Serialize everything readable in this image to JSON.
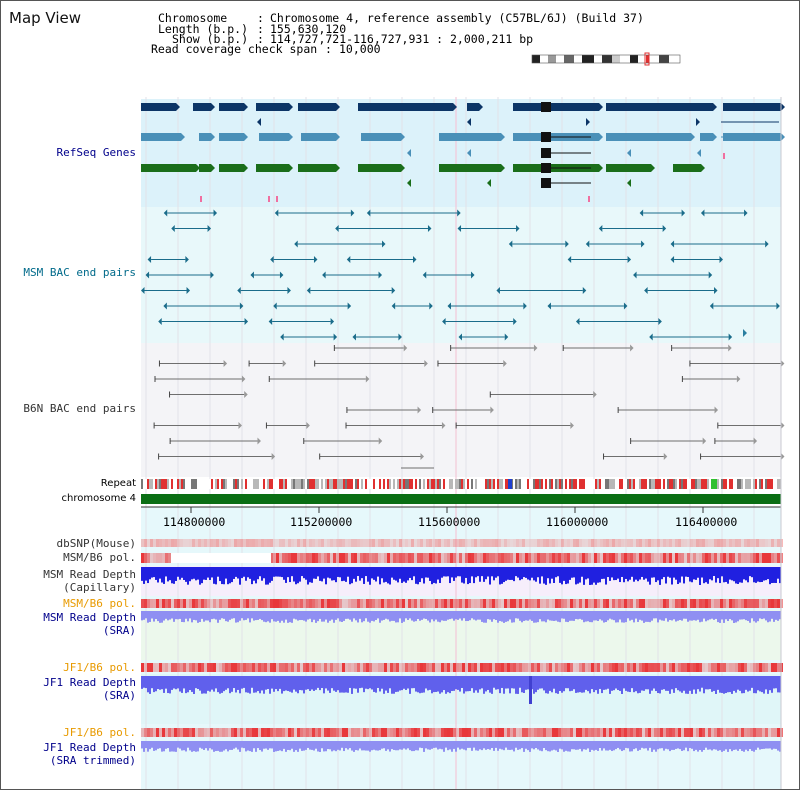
{
  "page": {
    "title": "Map View"
  },
  "header": {
    "chromosome_key": "Chromosome",
    "chromosome_value": "Chromosome 4, reference assembly (C57BL/6J) (Build 37)",
    "length_key": "Length (b.p.)",
    "length_value": "155,630,120",
    "show_key": "Show (b.p.)",
    "show_value": "114,727,721-116,727,931 : 2,000,211 bp",
    "span_key": "Read coverage check span",
    "span_value": "10,000",
    "separator": ":"
  },
  "tracks": {
    "refseq": "RefSeq Genes",
    "msm_bac": "MSM BAC end pairs",
    "b6n_bac": "B6N BAC end pairs",
    "repeat": "Repeat",
    "chromosome": "chromosome 4",
    "dbsnp": "dbSNP(Mouse)",
    "msm_b6_pol": "MSM/B6 pol.",
    "msm_depth_cap_1": "MSM Read Depth",
    "msm_depth_cap_2": "(Capillary)",
    "msm_b6_pol_sra": "MSM/B6 pol.",
    "msm_depth_sra_1": "MSM Read Depth",
    "msm_depth_sra_2": "(SRA)",
    "jf1_b6_pol": "JF1/B6 pol.",
    "jf1_depth_sra_1": "JF1 Read Depth",
    "jf1_depth_sra_2": "(SRA)",
    "jf1_b6_pol_trim": "JF1/B6 pol.",
    "jf1_depth_trim_1": "JF1 Read Depth",
    "jf1_depth_trim_2": "(SRA trimmed)"
  },
  "ruler": {
    "ticks": [
      "114800000",
      "115200000",
      "115600000",
      "116000000",
      "116400000"
    ]
  },
  "colors": {
    "refseq_bg": "#dcf2fa",
    "bac_bg": "#e8f8fa",
    "b6n_bg": "#f4f4f7",
    "navy": "#0c3566",
    "steel": "#4a90b8",
    "green": "#1a6e1a",
    "teal": "#1a6c8a",
    "gray_line": "#6e6e6e",
    "chrom_green": "#0a6e14",
    "depth_blue": "#2020e0",
    "sra_purple": "#8f8ff2",
    "pol_red": "#e8383b"
  }
}
